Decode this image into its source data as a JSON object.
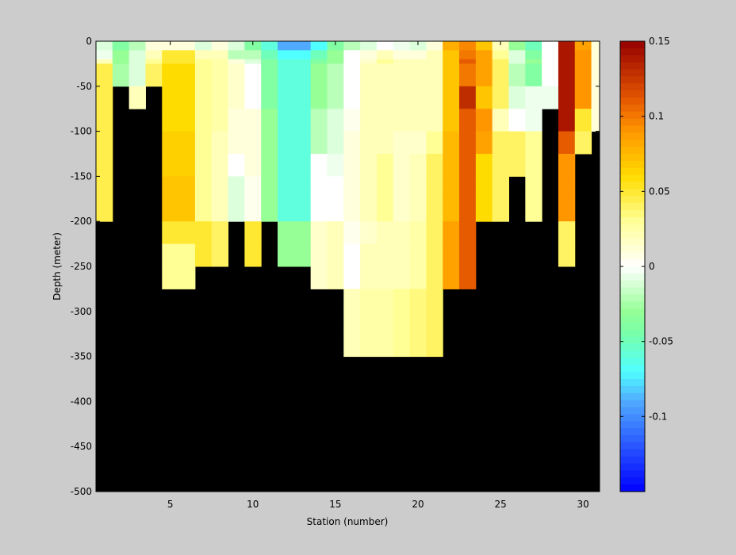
{
  "colors": {
    "figure_bg": "#cccccc",
    "no_data": "#000000"
  },
  "chart_data": {
    "type": "heatmap",
    "title": "",
    "xlabel": "Station (number)",
    "ylabel": "Depth (meter)",
    "xlim": [
      1,
      31
    ],
    "ylim": [
      -500,
      0
    ],
    "xticks": [
      5,
      10,
      15,
      20,
      25,
      30
    ],
    "yticks": [
      0,
      -50,
      -100,
      -150,
      -200,
      -250,
      -300,
      -350,
      -400,
      -450,
      -500
    ],
    "stations": [
      1,
      2,
      3,
      4,
      5,
      6,
      7,
      8,
      9,
      10,
      11,
      12,
      13,
      14,
      15,
      16,
      17,
      18,
      19,
      20,
      21,
      22,
      23,
      24,
      25,
      26,
      27,
      28,
      29,
      30,
      31
    ],
    "depths": [
      -5,
      -15,
      -25,
      -50,
      -75,
      -100,
      -125,
      -150,
      -175,
      -200,
      -250,
      -300,
      -350,
      -400
    ],
    "station_max_depth": [
      -200,
      -50,
      -75,
      -50,
      -300,
      -300,
      -250,
      -250,
      -200,
      -250,
      -200,
      -250,
      -250,
      -300,
      -300,
      -400,
      -400,
      -400,
      -400,
      -400,
      -300,
      -300,
      -200,
      -200,
      -150,
      -200,
      -100,
      -75,
      -250,
      -150,
      -125
    ],
    "colorbar": {
      "colormap": "jet-like with white center",
      "clim": [
        -0.15,
        0.15
      ],
      "ticks": [
        0.15,
        0.1,
        0.05,
        0,
        -0.05,
        -0.1
      ],
      "tick_labels": [
        "0.15",
        "0.1",
        "0.05",
        "0",
        "-0.05",
        "-0.1"
      ]
    },
    "profiles": [
      {
        "station": 1,
        "values": [
          -0.01,
          -0.005,
          0.02,
          0.045,
          0.045,
          0.045,
          0.045,
          0.045,
          0.045,
          0.045
        ]
      },
      {
        "station": 2,
        "values": [
          -0.04,
          -0.03,
          -0.03,
          -0.025
        ]
      },
      {
        "station": 3,
        "values": [
          -0.02,
          -0.01,
          -0.01,
          -0.01,
          0.02
        ]
      },
      {
        "station": 4,
        "values": [
          0.01,
          0.02,
          0.03,
          0.04
        ]
      },
      {
        "station": 5,
        "values": [
          0.01,
          0.05,
          0.05,
          0.06,
          0.06,
          0.06,
          0.065,
          0.065,
          0.07,
          0.07,
          0.05,
          0.03,
          0.03
        ]
      },
      {
        "station": 6,
        "values": [
          0.01,
          0.05,
          0.05,
          0.06,
          0.06,
          0.06,
          0.065,
          0.065,
          0.07,
          0.07,
          0.05,
          0.03,
          0.03
        ]
      },
      {
        "station": 7,
        "values": [
          -0.01,
          0.02,
          0.03,
          0.03,
          0.03,
          0.03,
          0.03,
          0.03,
          0.03,
          0.03,
          0.05,
          0.05
        ]
      },
      {
        "station": 8,
        "values": [
          0.01,
          0.02,
          0.025,
          0.025,
          0.025,
          0.025,
          0.02,
          0.02,
          0.02,
          0.02,
          0.04,
          0.04
        ]
      },
      {
        "station": 9,
        "values": [
          -0.01,
          -0.02,
          0.01,
          0.015,
          0.015,
          0.01,
          0.01,
          0.0,
          -0.01,
          -0.01
        ]
      },
      {
        "station": 10,
        "values": [
          -0.04,
          -0.02,
          -0.01,
          0.0,
          0.0,
          0.01,
          0.01,
          0.01,
          0.005,
          0.005,
          0.05,
          0.05
        ]
      },
      {
        "station": 11,
        "values": [
          -0.06,
          -0.05,
          -0.04,
          -0.04,
          -0.04,
          -0.03,
          -0.03,
          -0.03,
          -0.03,
          -0.03
        ]
      },
      {
        "station": 12,
        "values": [
          -0.09,
          -0.07,
          -0.06,
          -0.06,
          -0.06,
          -0.06,
          -0.06,
          -0.06,
          -0.06,
          -0.06,
          -0.03,
          -0.03
        ]
      },
      {
        "station": 13,
        "values": [
          -0.09,
          -0.07,
          -0.06,
          -0.06,
          -0.06,
          -0.06,
          -0.06,
          -0.06,
          -0.06,
          -0.06,
          -0.03,
          -0.03
        ]
      },
      {
        "station": 14,
        "values": [
          -0.07,
          -0.05,
          -0.04,
          -0.03,
          -0.03,
          -0.02,
          -0.02,
          0.0,
          0.0,
          0.0,
          0.015,
          0.015,
          0.015
        ]
      },
      {
        "station": 15,
        "values": [
          -0.04,
          -0.03,
          -0.03,
          -0.02,
          -0.02,
          -0.01,
          -0.01,
          -0.005,
          0.0,
          0.0,
          0.02,
          0.02,
          0.02
        ]
      },
      {
        "station": 16,
        "values": [
          -0.02,
          0.0,
          0.0,
          0.0,
          0.0,
          0.005,
          0.01,
          0.01,
          0.01,
          0.01,
          0.005,
          0.0,
          0.0,
          0.02,
          0.02,
          0.02
        ]
      },
      {
        "station": 17,
        "values": [
          -0.01,
          0.01,
          0.015,
          0.02,
          0.02,
          0.02,
          0.02,
          0.02,
          0.02,
          0.02,
          0.015,
          0.02,
          0.02,
          0.025,
          0.025,
          0.025
        ]
      },
      {
        "station": 18,
        "values": [
          0.0,
          0.02,
          0.03,
          0.02,
          0.02,
          0.02,
          0.02,
          0.03,
          0.03,
          0.03,
          0.02,
          0.02,
          0.02,
          0.025,
          0.025,
          0.025
        ]
      },
      {
        "station": 19,
        "values": [
          -0.005,
          0.01,
          0.02,
          0.02,
          0.02,
          0.02,
          0.015,
          0.015,
          0.015,
          0.015,
          0.02,
          0.02,
          0.02,
          0.03,
          0.03,
          0.03
        ]
      },
      {
        "station": 20,
        "values": [
          -0.01,
          0.01,
          0.02,
          0.02,
          0.02,
          0.02,
          0.015,
          0.02,
          0.02,
          0.02,
          0.025,
          0.025,
          0.025,
          0.035,
          0.035,
          0.035
        ]
      },
      {
        "station": 21,
        "values": [
          0.01,
          0.02,
          0.02,
          0.02,
          0.02,
          0.02,
          0.03,
          0.04,
          0.04,
          0.04,
          0.04,
          0.04,
          0.04,
          0.04,
          0.04,
          0.04
        ]
      },
      {
        "station": 22,
        "values": [
          0.08,
          0.07,
          0.07,
          0.07,
          0.07,
          0.07,
          0.075,
          0.075,
          0.075,
          0.075,
          0.085,
          0.085,
          0.085
        ]
      },
      {
        "station": 23,
        "values": [
          0.095,
          0.1,
          0.11,
          0.1,
          0.13,
          0.11,
          0.11,
          0.11,
          0.11,
          0.11,
          0.11,
          0.11,
          0.11
        ]
      },
      {
        "station": 24,
        "values": [
          0.07,
          0.085,
          0.085,
          0.085,
          0.07,
          0.09,
          0.085,
          0.06,
          0.06,
          0.06
        ]
      },
      {
        "station": 25,
        "values": [
          0.02,
          0.03,
          0.04,
          0.04,
          0.04,
          0.02,
          0.04,
          0.04,
          0.04,
          0.04
        ]
      },
      {
        "station": 26,
        "values": [
          -0.03,
          -0.01,
          -0.01,
          -0.02,
          -0.01,
          0.0,
          0.04,
          0.04
        ]
      },
      {
        "station": 27,
        "values": [
          -0.05,
          -0.04,
          -0.03,
          -0.04,
          -0.005,
          -0.005,
          0.03,
          0.03,
          0.03,
          0.03
        ]
      },
      {
        "station": 28,
        "values": [
          0.0,
          0.0,
          0.0,
          0.0,
          -0.005
        ]
      },
      {
        "station": 29,
        "values": [
          0.14,
          0.14,
          0.14,
          0.14,
          0.14,
          0.14,
          0.11,
          0.09,
          0.09,
          0.09,
          0.04,
          0.04
        ]
      },
      {
        "station": 30,
        "values": [
          0.085,
          0.09,
          0.09,
          0.09,
          0.09,
          0.05,
          0.04
        ]
      },
      {
        "station": 31,
        "values": [
          0.01,
          0.01,
          0.01,
          0.01,
          0.01,
          0.01
        ]
      }
    ]
  }
}
